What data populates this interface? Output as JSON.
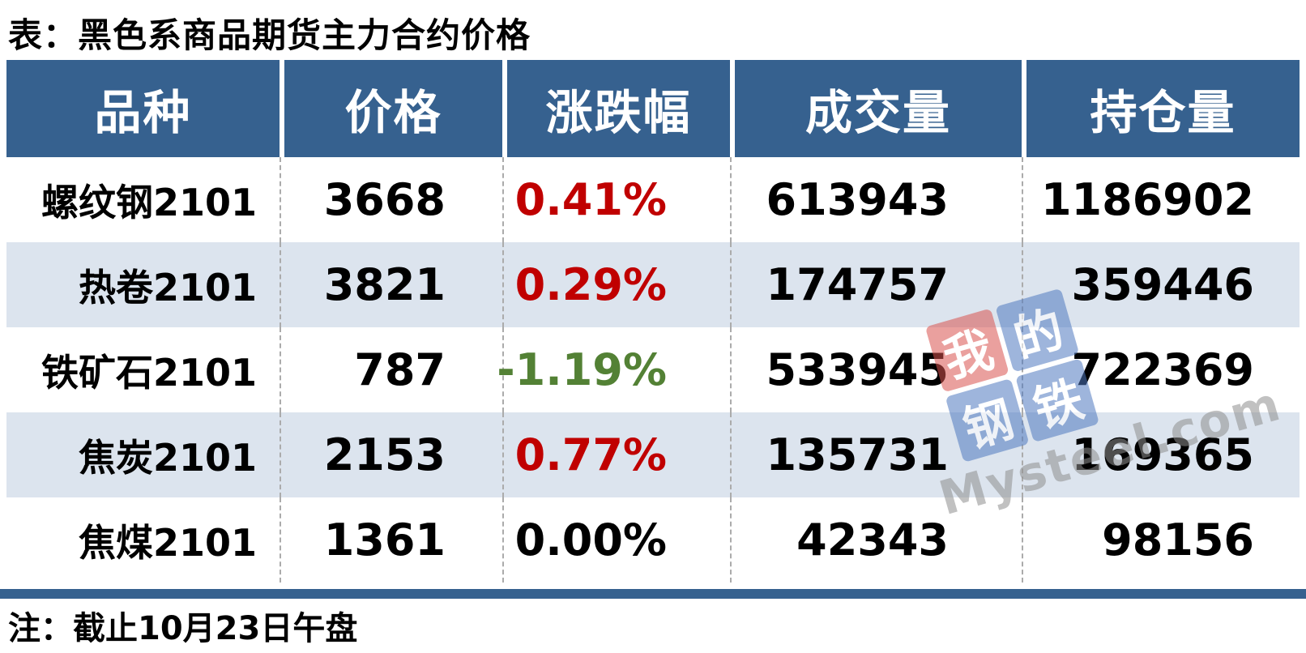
{
  "title": "表：黑色系商品期货主力合约价格",
  "note": "注：截止10月23日午盘",
  "table": {
    "headers": [
      "品种",
      "价格",
      "涨跌幅",
      "成交量",
      "持仓量"
    ],
    "rows": [
      {
        "variety": "螺纹钢2101",
        "price": "3668",
        "change": "0.41%",
        "change_color": "#C00000",
        "volume": "613943",
        "open_interest": "1186902"
      },
      {
        "variety": "热卷2101",
        "price": "3821",
        "change": "0.29%",
        "change_color": "#C00000",
        "volume": "174757",
        "open_interest": "359446"
      },
      {
        "variety": "铁矿石2101",
        "price": "787",
        "change": "-1.19%",
        "change_color": "#538135",
        "volume": "533945",
        "open_interest": "722369"
      },
      {
        "variety": "焦炭2101",
        "price": "2153",
        "change": "0.77%",
        "change_color": "#C00000",
        "volume": "135731",
        "open_interest": "169365"
      },
      {
        "variety": "焦煤2101",
        "price": "1361",
        "change": "0.00%",
        "change_color": "#000000",
        "volume": "42343",
        "open_interest": "98156"
      }
    ]
  },
  "colors": {
    "header_bg": "#36618F",
    "row_alt_bg": "#DCE4EE",
    "up_red": "#C00000",
    "down_green": "#538135",
    "flat_black": "#000000",
    "bottom_bar": "#36618F",
    "column_divider": "#ABABAB"
  },
  "watermark": {
    "tiles": [
      {
        "char": "我",
        "bg": "red"
      },
      {
        "char": "的",
        "bg": "blue"
      },
      {
        "char": "钢",
        "bg": "blue"
      },
      {
        "char": "铁",
        "bg": "blue"
      }
    ],
    "brand": "Mysteel.com"
  }
}
